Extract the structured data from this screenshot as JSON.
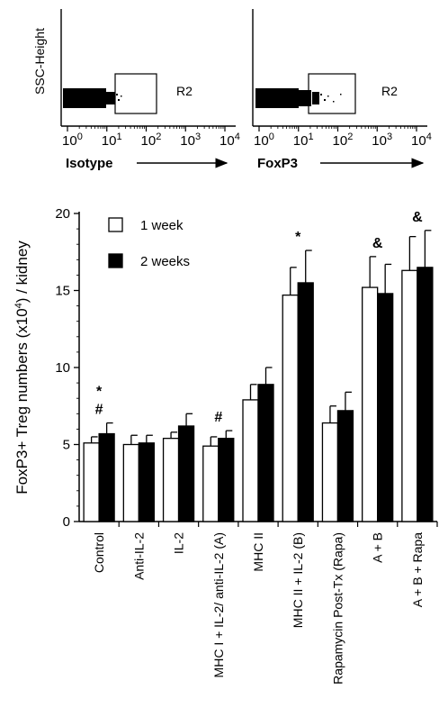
{
  "flow_panels": [
    {
      "ylabel": "SSC-Height",
      "xlabel": "Isotype",
      "gate_label": "R2",
      "tick_exponents": [
        "0",
        "1",
        "2",
        "3",
        "4"
      ]
    },
    {
      "ylabel": "",
      "xlabel": "FoxP3",
      "gate_label": "R2",
      "tick_exponents": [
        "0",
        "1",
        "2",
        "3",
        "4"
      ]
    }
  ],
  "chart_data": {
    "type": "bar",
    "title": "",
    "ylabel": "FoxP3+ Treg numbers (x10",
    "ylabel_sup": "4",
    "ylabel_tail": ") / kidney",
    "ylim": [
      0,
      20
    ],
    "yticks": [
      "0",
      "5",
      "10",
      "15",
      "20"
    ],
    "categories": [
      "Control",
      "Anti-IL-2",
      "IL-2",
      "MHC I + IL-2/ anti-IL-2 (A)",
      "MHC II",
      "MHC II + IL-2 (B)",
      "Rapamycin Post-Tx (Rapa)",
      "A + B",
      "A + B + Rapa"
    ],
    "series": [
      {
        "name": "1 week",
        "color": "#ffffff",
        "values": [
          5.1,
          5.0,
          5.4,
          4.9,
          7.9,
          14.7,
          6.4,
          15.2,
          16.3
        ],
        "errors": [
          0.4,
          0.6,
          0.4,
          0.6,
          1.0,
          1.8,
          1.1,
          2.0,
          2.2
        ]
      },
      {
        "name": "2 weeks",
        "color": "#000000",
        "values": [
          5.7,
          5.1,
          6.2,
          5.4,
          8.9,
          15.5,
          7.2,
          14.8,
          16.5
        ],
        "errors": [
          0.7,
          0.5,
          0.8,
          0.5,
          1.1,
          2.1,
          1.2,
          1.9,
          2.4
        ]
      }
    ],
    "annotations": [
      {
        "category": "Control",
        "lines": [
          "*",
          "#"
        ]
      },
      {
        "category": "MHC I + IL-2/ anti-IL-2 (A)",
        "lines": [
          "#"
        ]
      },
      {
        "category": "MHC II + IL-2 (B)",
        "lines": [
          "*"
        ]
      },
      {
        "category": "A + B",
        "lines": [
          "&"
        ]
      },
      {
        "category": "A + B + Rapa",
        "lines": [
          "&"
        ]
      }
    ],
    "legend_position": "top-left"
  }
}
